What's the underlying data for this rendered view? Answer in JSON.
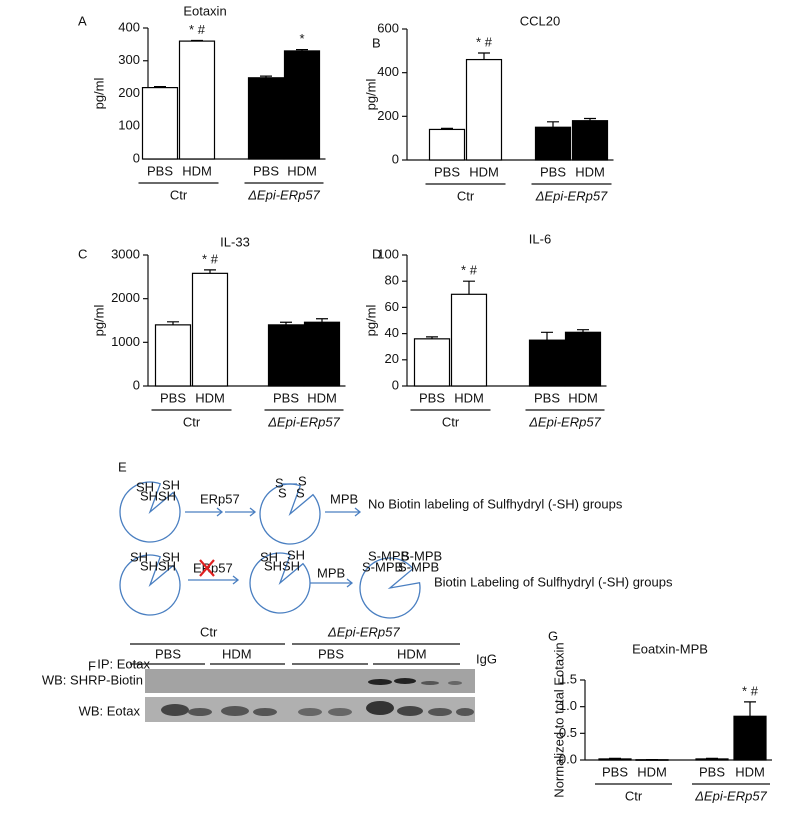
{
  "chart_data": [
    {
      "type": "bar",
      "panel": "A",
      "title": "Eotaxin",
      "y_label": "pg/ml",
      "categories": [
        "PBS",
        "HDM",
        "PBS",
        "HDM"
      ],
      "groups": [
        "Ctr",
        "ΔEpi-ERp57"
      ],
      "values": [
        218,
        360,
        248,
        330
      ],
      "errors": [
        3,
        2,
        5,
        4
      ],
      "colors": [
        "#ffffff",
        "#ffffff",
        "#000000",
        "#000000"
      ],
      "annotations": [
        null,
        "* #",
        null,
        "*"
      ],
      "ylim": [
        0,
        400
      ],
      "yticks": [
        0,
        100,
        200,
        300,
        400
      ]
    },
    {
      "type": "bar",
      "panel": "B",
      "title": "CCL20",
      "y_label": "pg/ml",
      "categories": [
        "PBS",
        "HDM",
        "PBS",
        "HDM"
      ],
      "groups": [
        "Ctr",
        "ΔEpi-ERp57"
      ],
      "values": [
        140,
        460,
        150,
        180
      ],
      "errors": [
        5,
        30,
        25,
        10
      ],
      "colors": [
        "#ffffff",
        "#ffffff",
        "#000000",
        "#000000"
      ],
      "annotations": [
        null,
        "* #",
        null,
        null
      ],
      "ylim": [
        0,
        600
      ],
      "yticks": [
        0,
        200,
        400,
        600
      ]
    },
    {
      "type": "bar",
      "panel": "C",
      "title": "IL-33",
      "y_label": "pg/ml",
      "categories": [
        "PBS",
        "HDM",
        "PBS",
        "HDM"
      ],
      "groups": [
        "Ctr",
        "ΔEpi-ERp57"
      ],
      "values": [
        1400,
        2580,
        1400,
        1460
      ],
      "errors": [
        70,
        80,
        60,
        80
      ],
      "colors": [
        "#ffffff",
        "#ffffff",
        "#000000",
        "#000000"
      ],
      "annotations": [
        null,
        "* #",
        null,
        null
      ],
      "ylim": [
        0,
        3000
      ],
      "yticks": [
        0,
        1000,
        2000,
        3000
      ]
    },
    {
      "type": "bar",
      "panel": "D",
      "title": "IL-6",
      "y_label": "pg/ml",
      "categories": [
        "PBS",
        "HDM",
        "PBS",
        "HDM"
      ],
      "groups": [
        "Ctr",
        "ΔEpi-ERp57"
      ],
      "values": [
        36,
        70,
        35,
        41
      ],
      "errors": [
        1.5,
        10,
        6,
        2
      ],
      "colors": [
        "#ffffff",
        "#ffffff",
        "#000000",
        "#000000"
      ],
      "annotations": [
        null,
        "* #",
        null,
        null
      ],
      "ylim": [
        0,
        100
      ],
      "yticks": [
        0,
        20,
        40,
        60,
        80,
        100
      ]
    },
    {
      "type": "bar",
      "panel": "G",
      "title": "Eoatxin-MPB",
      "y_label": "Normalized to total Eotaxin",
      "categories": [
        "PBS",
        "HDM",
        "PBS",
        "HDM"
      ],
      "groups": [
        "Ctr",
        "ΔEpi-ERp57"
      ],
      "values": [
        0.02,
        0.005,
        0.02,
        0.82
      ],
      "errors": [
        0.01,
        0.003,
        0.01,
        0.27
      ],
      "colors": [
        "#ffffff",
        "#ffffff",
        "#000000",
        "#000000"
      ],
      "annotations": [
        null,
        null,
        null,
        "* #"
      ],
      "ylim": [
        0,
        1.5
      ],
      "yticks": [
        {
          "value": 0,
          "label": "0.0"
        },
        0.5,
        {
          "value": 1,
          "label": "1.0"
        },
        1.5
      ]
    }
  ],
  "diagram": {
    "panel": "E",
    "row1": {
      "thiols": [
        "SH",
        "SH",
        "SH",
        "SH"
      ],
      "enzyme": "ERp57",
      "disulfide": [
        "S",
        "S",
        "S",
        "S"
      ],
      "reagent": "MPB",
      "result": "No Biotin labeling of Sulfhydryl (-SH) groups"
    },
    "row2": {
      "thiols": [
        "SH",
        "SH",
        "SH",
        "SH"
      ],
      "enzyme": "ERp57",
      "reduced": [
        "SH",
        "SH",
        "SH",
        "SH"
      ],
      "reagent": "MPB",
      "labeled": [
        "S-MPB",
        "S-MPB",
        "S-MPB",
        "S-MPB"
      ],
      "result": "Biotin Labeling of Sulfhydryl (-SH) groups"
    }
  },
  "blot": {
    "panel": "F",
    "groups": [
      "Ctr",
      "ΔEpi-ERp57"
    ],
    "lanes": [
      "PBS",
      "HDM",
      "PBS",
      "HDM"
    ],
    "control": "IgG",
    "rows": [
      "IP: Eotax",
      "WB: SHRP-Biotin",
      "WB: Eotax"
    ]
  }
}
